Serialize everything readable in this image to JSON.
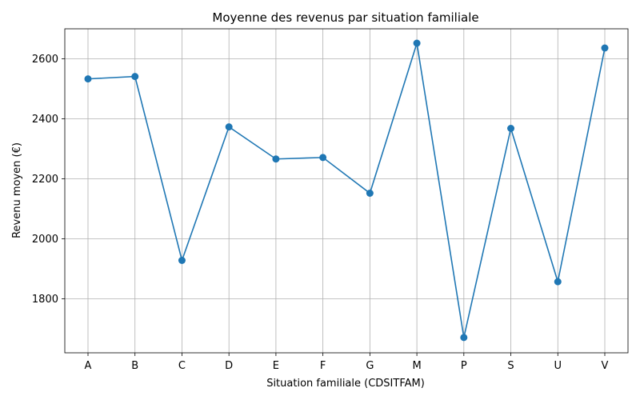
{
  "chart_data": {
    "type": "line",
    "title": "Moyenne des revenus par situation familiale",
    "xlabel": "Situation familiale (CDSITFAM)",
    "ylabel": "Revenu moyen (€)",
    "categories": [
      "A",
      "B",
      "C",
      "D",
      "E",
      "F",
      "G",
      "M",
      "P",
      "S",
      "U",
      "V"
    ],
    "series": [
      {
        "values": [
          2533,
          2541,
          1928,
          2373,
          2266,
          2271,
          2152,
          2652,
          1671,
          2368,
          1857,
          2636
        ],
        "color": "#1f77b4",
        "marker": "circle"
      }
    ],
    "yticks": [
      1800,
      2000,
      2200,
      2400,
      2600
    ],
    "ylim": [
      1620,
      2700
    ],
    "grid": true,
    "legend": "none"
  }
}
